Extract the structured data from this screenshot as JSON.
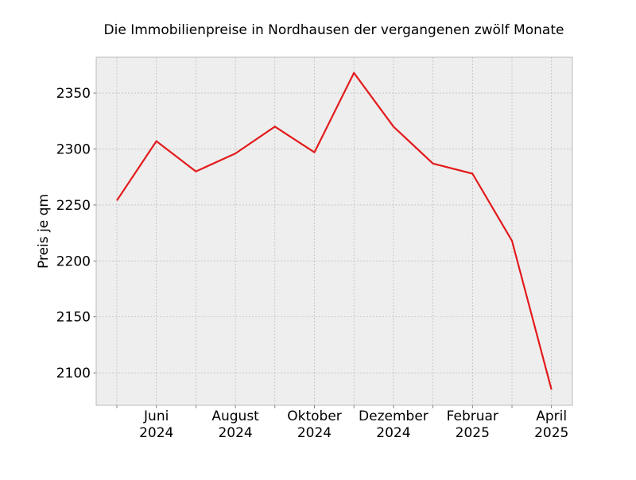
{
  "chart_data": {
    "type": "line",
    "title": "Die Immobilienpreise in Nordhausen der vergangenen zwölf Monate",
    "xlabel": "",
    "ylabel": "Preis je qm",
    "x": [
      "2024-05",
      "2024-06",
      "2024-07",
      "2024-08",
      "2024-09",
      "2024-10",
      "2024-11",
      "2024-12",
      "2025-01",
      "2025-02",
      "2025-03",
      "2025-04"
    ],
    "x_tick_labels": [
      {
        "x": "2024-06",
        "line1": "Juni",
        "line2": "2024"
      },
      {
        "x": "2024-08",
        "line1": "August",
        "line2": "2024"
      },
      {
        "x": "2024-10",
        "line1": "Oktober",
        "line2": "2024"
      },
      {
        "x": "2024-12",
        "line1": "Dezember",
        "line2": "2024"
      },
      {
        "x": "2025-02",
        "line1": "Februar",
        "line2": "2025"
      },
      {
        "x": "2025-04",
        "line1": "April",
        "line2": "2025"
      }
    ],
    "series": [
      {
        "values": [
          2254,
          2307,
          2280,
          2296,
          2320,
          2297,
          2368,
          2320,
          2287,
          2278,
          2218,
          2085
        ]
      }
    ],
    "ylim": [
      2071,
      2382
    ],
    "y_ticks": [
      2100,
      2150,
      2200,
      2250,
      2300,
      2350
    ],
    "grid": true,
    "colors": {
      "line": "#e31a1c",
      "plot_bg": "#eeeeee",
      "grid": "#b0b0b0",
      "frame": "#bcbcbc"
    }
  }
}
